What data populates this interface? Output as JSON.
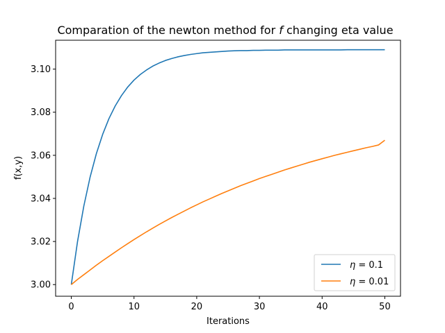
{
  "chart_data": {
    "type": "line",
    "title_prefix": "Comparation of the newton method for ",
    "title_symbol": "f",
    "title_suffix": " changing eta value",
    "xlabel": "Iterations",
    "ylabel": "f(x,y)",
    "xlim": [
      -2.5,
      52.5
    ],
    "ylim": [
      2.9946,
      3.1134
    ],
    "xticks": [
      0,
      10,
      20,
      30,
      40,
      50
    ],
    "xtick_labels": [
      "0",
      "10",
      "20",
      "30",
      "40",
      "50"
    ],
    "yticks": [
      3.0,
      3.02,
      3.04,
      3.06,
      3.08,
      3.1
    ],
    "ytick_labels": [
      "3.00",
      "3.02",
      "3.04",
      "3.06",
      "3.08",
      "3.10"
    ],
    "grid": false,
    "legend_position": "lower right",
    "series": [
      {
        "name_symbol": "η",
        "name_rest": " = 0.1",
        "color": "#1f77b4",
        "x": [
          0,
          1,
          2,
          3,
          4,
          5,
          6,
          7,
          8,
          9,
          10,
          11,
          12,
          13,
          14,
          15,
          16,
          17,
          18,
          19,
          20,
          21,
          22,
          23,
          24,
          25,
          26,
          27,
          28,
          29,
          30,
          31,
          32,
          33,
          34,
          35,
          36,
          37,
          38,
          39,
          40,
          41,
          42,
          43,
          44,
          45,
          46,
          47,
          48,
          49,
          50
        ],
        "y": [
          3.0,
          3.0201,
          3.0365,
          3.0499,
          3.0608,
          3.0697,
          3.077,
          3.0829,
          3.0877,
          3.0917,
          3.0949,
          3.0975,
          3.0996,
          3.1014,
          3.1028,
          3.104,
          3.1049,
          3.1057,
          3.1063,
          3.1068,
          3.1072,
          3.1076,
          3.1078,
          3.108,
          3.1082,
          3.1084,
          3.1085,
          3.1086,
          3.1086,
          3.1087,
          3.1087,
          3.1088,
          3.1088,
          3.1088,
          3.1089,
          3.1089,
          3.1089,
          3.1089,
          3.1089,
          3.1089,
          3.1089,
          3.1089,
          3.1089,
          3.1089,
          3.109,
          3.109,
          3.109,
          3.109,
          3.109,
          3.109,
          3.109
        ]
      },
      {
        "name_symbol": "η",
        "name_rest": " = 0.01",
        "color": "#ff7f0e",
        "x": [
          0,
          1,
          2,
          3,
          4,
          5,
          6,
          7,
          8,
          9,
          10,
          11,
          12,
          13,
          14,
          15,
          16,
          17,
          18,
          19,
          20,
          21,
          22,
          23,
          24,
          25,
          26,
          27,
          28,
          29,
          30,
          31,
          32,
          33,
          34,
          35,
          36,
          37,
          38,
          39,
          40,
          41,
          42,
          43,
          44,
          45,
          46,
          47,
          48,
          49,
          50
        ],
        "y": [
          3.0,
          3.0024,
          3.0046,
          3.0068,
          3.009,
          3.0111,
          3.0131,
          3.0151,
          3.0171,
          3.019,
          3.0209,
          3.0227,
          3.0245,
          3.0262,
          3.0279,
          3.0295,
          3.0311,
          3.0326,
          3.0341,
          3.0356,
          3.037,
          3.0384,
          3.0397,
          3.041,
          3.0423,
          3.0435,
          3.0447,
          3.0459,
          3.047,
          3.0481,
          3.0492,
          3.0502,
          3.0512,
          3.0522,
          3.0532,
          3.0541,
          3.055,
          3.0559,
          3.0568,
          3.0576,
          3.0584,
          3.0592,
          3.06,
          3.0607,
          3.0614,
          3.0621,
          3.0628,
          3.0635,
          3.0641,
          3.0648,
          3.067
        ]
      }
    ]
  }
}
